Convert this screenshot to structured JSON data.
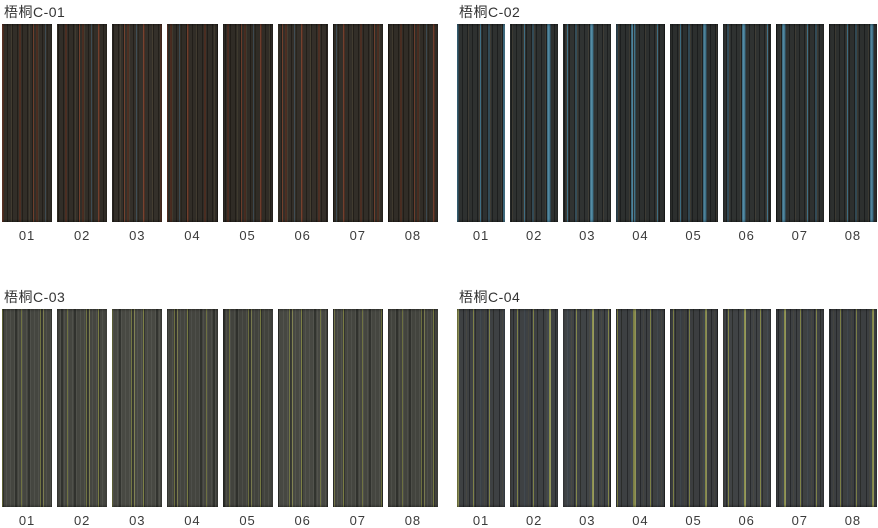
{
  "page": {
    "background": "#ffffff",
    "text_color": "#333333"
  },
  "groups": [
    {
      "title": "梧桐C-01",
      "swatches": [
        "01",
        "02",
        "03",
        "04",
        "05",
        "06",
        "07",
        "08"
      ],
      "palette": {
        "base": "#322e28",
        "accents": [
          "#7a422e",
          "#4e2d21",
          "#405461",
          "#5c543e"
        ]
      }
    },
    {
      "title": "梧桐C-02",
      "swatches": [
        "01",
        "02",
        "03",
        "04",
        "05",
        "06",
        "07",
        "08"
      ],
      "palette": {
        "base": "#2e3130",
        "accents": [
          "#40748c",
          "#5896b2",
          "#34505e",
          "#60523c"
        ]
      }
    },
    {
      "title": "梧桐C-03",
      "swatches": [
        "01",
        "02",
        "03",
        "04",
        "05",
        "06",
        "07",
        "08"
      ],
      "palette": {
        "base": "#454640",
        "accents": [
          "#7a7e42",
          "#949658",
          "#1e1f1c",
          "#565750"
        ]
      }
    },
    {
      "title": "梧桐C-04",
      "swatches": [
        "01",
        "02",
        "03",
        "04",
        "05",
        "06",
        "07",
        "08"
      ],
      "palette": {
        "base": "#3e4143",
        "accents": [
          "#868a48",
          "#a0a25e",
          "#464e56",
          "#121416"
        ]
      }
    }
  ]
}
